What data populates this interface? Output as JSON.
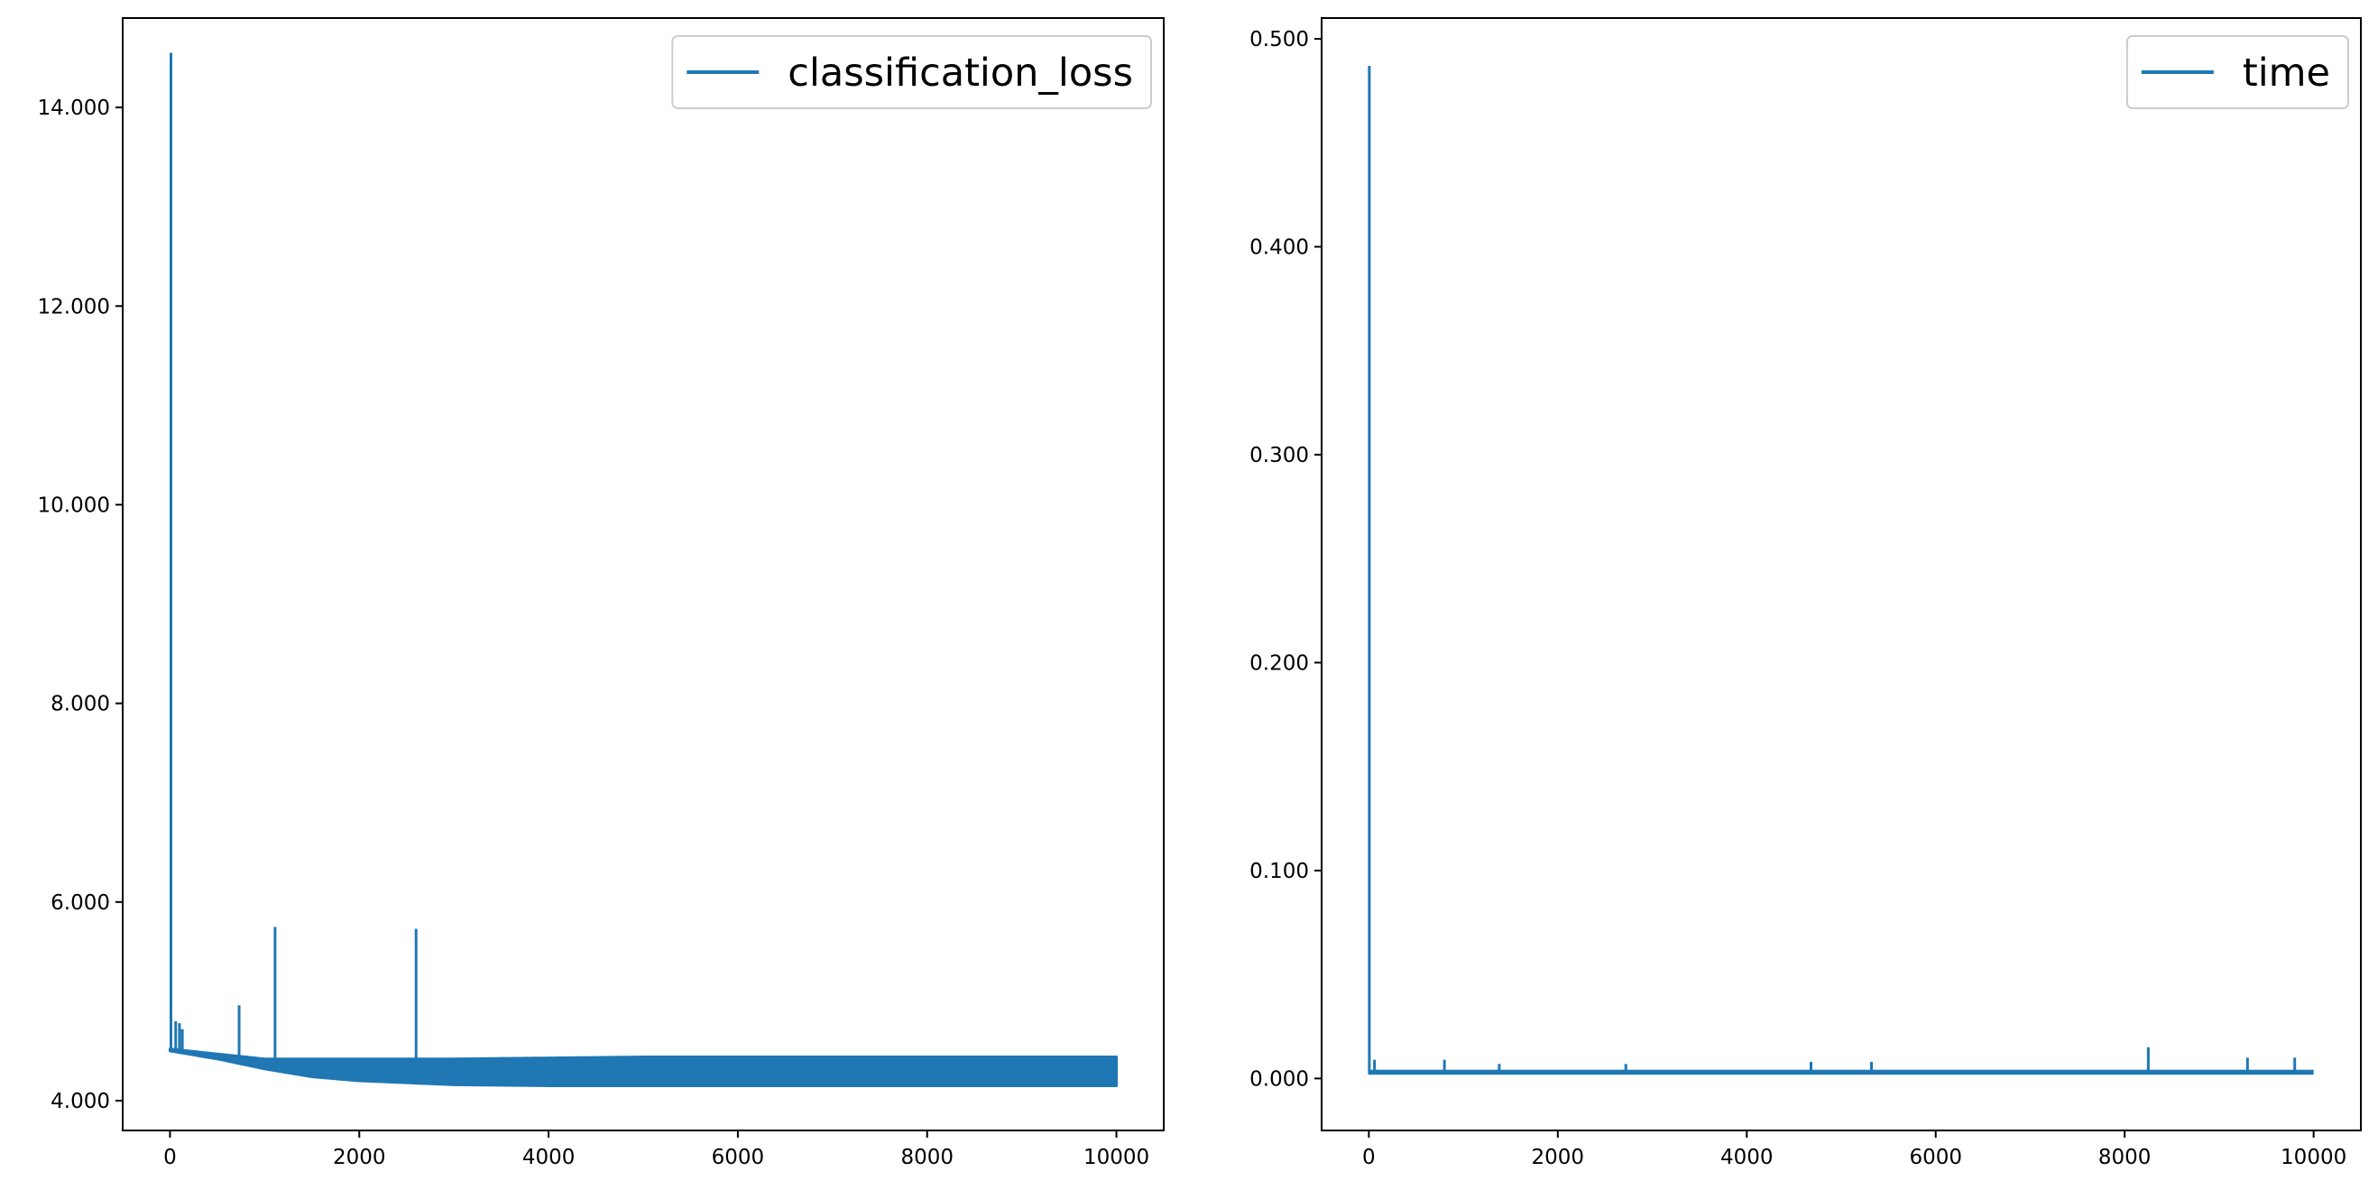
{
  "colors": {
    "series": "#1f77b4",
    "axes": "#000000",
    "legend_border": "#cccccc"
  },
  "chart_data": [
    {
      "type": "line",
      "title": "",
      "xlabel": "",
      "ylabel": "",
      "xlim": [
        -500,
        10500
      ],
      "ylim": [
        3.7,
        14.9
      ],
      "grid": false,
      "legend_position": "top-right",
      "xticks": [
        0,
        2000,
        4000,
        6000,
        8000,
        10000
      ],
      "xtick_labels": [
        "0",
        "2000",
        "4000",
        "6000",
        "8000",
        "10000"
      ],
      "yticks": [
        4,
        6,
        8,
        10,
        12,
        14
      ],
      "ytick_labels": [
        "4.000",
        "6.000",
        "8.000",
        "10.000",
        "12.000",
        "14.000"
      ],
      "series": [
        {
          "name": "classification_loss",
          "x_range": [
            0,
            10000
          ],
          "spikes": [
            {
              "x": 10,
              "y": 14.55
            },
            {
              "x": 60,
              "y": 4.8
            },
            {
              "x": 100,
              "y": 4.78
            },
            {
              "x": 130,
              "y": 4.72
            },
            {
              "x": 730,
              "y": 4.96
            },
            {
              "x": 1110,
              "y": 5.75
            },
            {
              "x": 2600,
              "y": 5.73
            }
          ],
          "upper_envelope": [
            [
              0,
              4.52
            ],
            [
              1000,
              4.42
            ],
            [
              3000,
              4.42
            ],
            [
              5000,
              4.44
            ],
            [
              10000,
              4.44
            ]
          ],
          "lower_envelope": [
            [
              0,
              4.5
            ],
            [
              500,
              4.42
            ],
            [
              1000,
              4.32
            ],
            [
              1500,
              4.24
            ],
            [
              2000,
              4.2
            ],
            [
              2500,
              4.18
            ],
            [
              3000,
              4.16
            ],
            [
              4000,
              4.15
            ],
            [
              10000,
              4.15
            ]
          ]
        }
      ]
    },
    {
      "type": "line",
      "title": "",
      "xlabel": "",
      "ylabel": "",
      "xlim": [
        -500,
        10500
      ],
      "ylim": [
        -0.025,
        0.51
      ],
      "grid": false,
      "legend_position": "top-right",
      "xticks": [
        0,
        2000,
        4000,
        6000,
        8000,
        10000
      ],
      "xtick_labels": [
        "0",
        "2000",
        "4000",
        "6000",
        "8000",
        "10000"
      ],
      "yticks": [
        0,
        0.1,
        0.2,
        0.3,
        0.4,
        0.5
      ],
      "ytick_labels": [
        "0.000",
        "0.100",
        "0.200",
        "0.300",
        "0.400",
        "0.500"
      ],
      "series": [
        {
          "name": "time",
          "x_range": [
            0,
            10000
          ],
          "baseline": 0.003,
          "spikes": [
            {
              "x": 5,
              "y": 0.487
            },
            {
              "x": 60,
              "y": 0.009
            },
            {
              "x": 800,
              "y": 0.009
            },
            {
              "x": 1380,
              "y": 0.007
            },
            {
              "x": 2720,
              "y": 0.007
            },
            {
              "x": 4680,
              "y": 0.008
            },
            {
              "x": 5320,
              "y": 0.008
            },
            {
              "x": 8250,
              "y": 0.015
            },
            {
              "x": 9300,
              "y": 0.01
            },
            {
              "x": 9800,
              "y": 0.01
            }
          ]
        }
      ]
    }
  ]
}
